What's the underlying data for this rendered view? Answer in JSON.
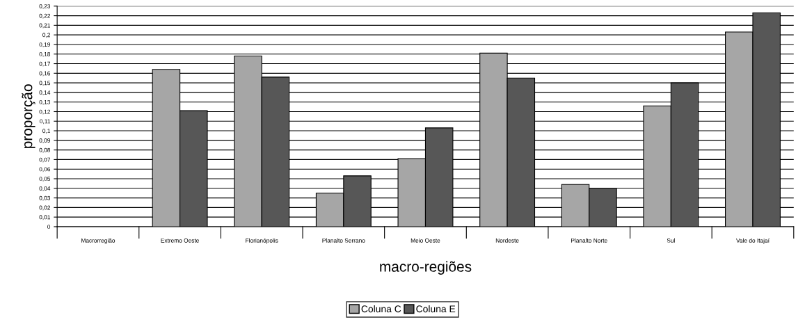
{
  "chart_data": {
    "type": "bar",
    "xlabel": "macro-regiões",
    "ylabel": "proporção",
    "categories": [
      "Macrorregião",
      "Extremo Oeste",
      "Florianópolis",
      "Planalto Serrano",
      "Meio Oeste",
      "Nordeste",
      "Planalto Norte",
      "Sul",
      "Vale do Itajaí"
    ],
    "series": [
      {
        "name": "Coluna C",
        "color": "#a6a6a6",
        "values": [
          null,
          0.164,
          0.178,
          0.035,
          0.071,
          0.181,
          0.044,
          0.126,
          0.203
        ]
      },
      {
        "name": "Coluna E",
        "color": "#575757",
        "values": [
          null,
          0.121,
          0.156,
          0.053,
          0.103,
          0.155,
          0.04,
          0.15,
          0.223
        ]
      }
    ],
    "ylim": [
      0,
      0.23
    ],
    "yticks": [
      0,
      {
        "value": 0.01,
        "label": "0,01"
      },
      {
        "value": 0.02,
        "label": "0,02"
      },
      {
        "value": 0.03,
        "label": "0,03"
      },
      {
        "value": 0.04,
        "label": "0,04"
      },
      {
        "value": 0.05,
        "label": "0,05"
      },
      {
        "value": 0.06,
        "label": "0,06"
      },
      {
        "value": 0.07,
        "label": "0,07"
      },
      {
        "value": 0.08,
        "label": "0,08"
      },
      {
        "value": 0.09,
        "label": "0,09"
      },
      {
        "value": 0.1,
        "label": "0,1"
      },
      {
        "value": 0.11,
        "label": "0,11"
      },
      {
        "value": 0.12,
        "label": "0,12"
      },
      {
        "value": 0.13,
        "label": "0,13"
      },
      {
        "value": 0.14,
        "label": "0,14"
      },
      {
        "value": 0.15,
        "label": "0,15"
      },
      {
        "value": 0.16,
        "label": "0,16"
      },
      {
        "value": 0.17,
        "label": "0,17"
      },
      {
        "value": 0.18,
        "label": "0,18"
      },
      {
        "value": 0.19,
        "label": "0,19"
      },
      {
        "value": 0.2,
        "label": "0,2"
      },
      {
        "value": 0.21,
        "label": "0,21"
      },
      {
        "value": 0.22,
        "label": "0,22"
      },
      {
        "value": 0.23,
        "label": "0,23"
      }
    ],
    "grid": "y",
    "legend": "bottom"
  }
}
